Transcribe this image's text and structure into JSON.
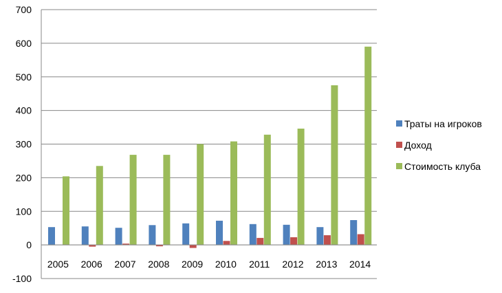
{
  "chart_data": {
    "type": "bar",
    "categories": [
      "2005",
      "2006",
      "2007",
      "2008",
      "2009",
      "2010",
      "2011",
      "2012",
      "2013",
      "2014"
    ],
    "series": [
      {
        "name": "Траты на игроков",
        "color": "#4F81BD",
        "values": [
          53,
          55,
          51,
          59,
          64,
          72,
          62,
          60,
          53,
          74
        ]
      },
      {
        "name": "Доход",
        "color": "#C0504D",
        "values": [
          0,
          -5,
          4,
          -4,
          -9,
          12,
          21,
          23,
          29,
          32
        ]
      },
      {
        "name": "Стоимость клуба",
        "color": "#9BBB59",
        "values": [
          204,
          235,
          268,
          268,
          300,
          308,
          328,
          346,
          475,
          590
        ]
      }
    ],
    "y_ticks": [
      "700",
      "600",
      "500",
      "400",
      "300",
      "200",
      "100",
      "0",
      "-100"
    ],
    "ylim": [
      -100,
      700
    ],
    "grid": true,
    "legend_position": "right",
    "title": "",
    "xlabel": "",
    "ylabel": ""
  }
}
